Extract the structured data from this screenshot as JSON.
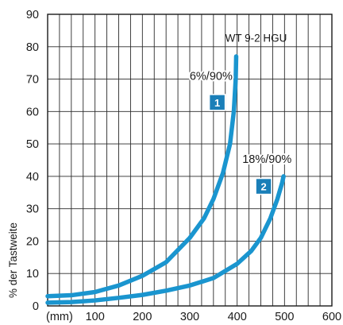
{
  "chart_data": {
    "type": "line",
    "title": "",
    "annotation": "WT 9-2 HGU",
    "xlabel": "(mm)",
    "ylabel": "% der Tastweite",
    "xlim": [
      0,
      600
    ],
    "ylim": [
      0,
      90
    ],
    "x_ticks": [
      100,
      200,
      300,
      400,
      500,
      600
    ],
    "y_ticks": [
      0,
      10,
      20,
      30,
      40,
      50,
      60,
      70,
      80,
      90
    ],
    "grid": true,
    "series": [
      {
        "name": "6%/90%",
        "badge": "1",
        "color": "#1a95cf",
        "points": [
          [
            0,
            3
          ],
          [
            50,
            3.3
          ],
          [
            100,
            4.3
          ],
          [
            150,
            6.3
          ],
          [
            200,
            9.3
          ],
          [
            250,
            13.5
          ],
          [
            300,
            21
          ],
          [
            330,
            27
          ],
          [
            350,
            33
          ],
          [
            370,
            41
          ],
          [
            385,
            50
          ],
          [
            393,
            60
          ],
          [
            397,
            70
          ],
          [
            398,
            77
          ]
        ]
      },
      {
        "name": "18%/90%",
        "badge": "2",
        "color": "#1a95cf",
        "points": [
          [
            0,
            1
          ],
          [
            50,
            1.2
          ],
          [
            100,
            1.7
          ],
          [
            150,
            2.5
          ],
          [
            200,
            3.4
          ],
          [
            250,
            4.7
          ],
          [
            300,
            6.3
          ],
          [
            350,
            8.6
          ],
          [
            400,
            13
          ],
          [
            430,
            17
          ],
          [
            450,
            21
          ],
          [
            470,
            27
          ],
          [
            485,
            33
          ],
          [
            495,
            38
          ],
          [
            498,
            40
          ]
        ]
      }
    ]
  },
  "accent": "#1a95cf",
  "badge_color": "#1a7fb8"
}
